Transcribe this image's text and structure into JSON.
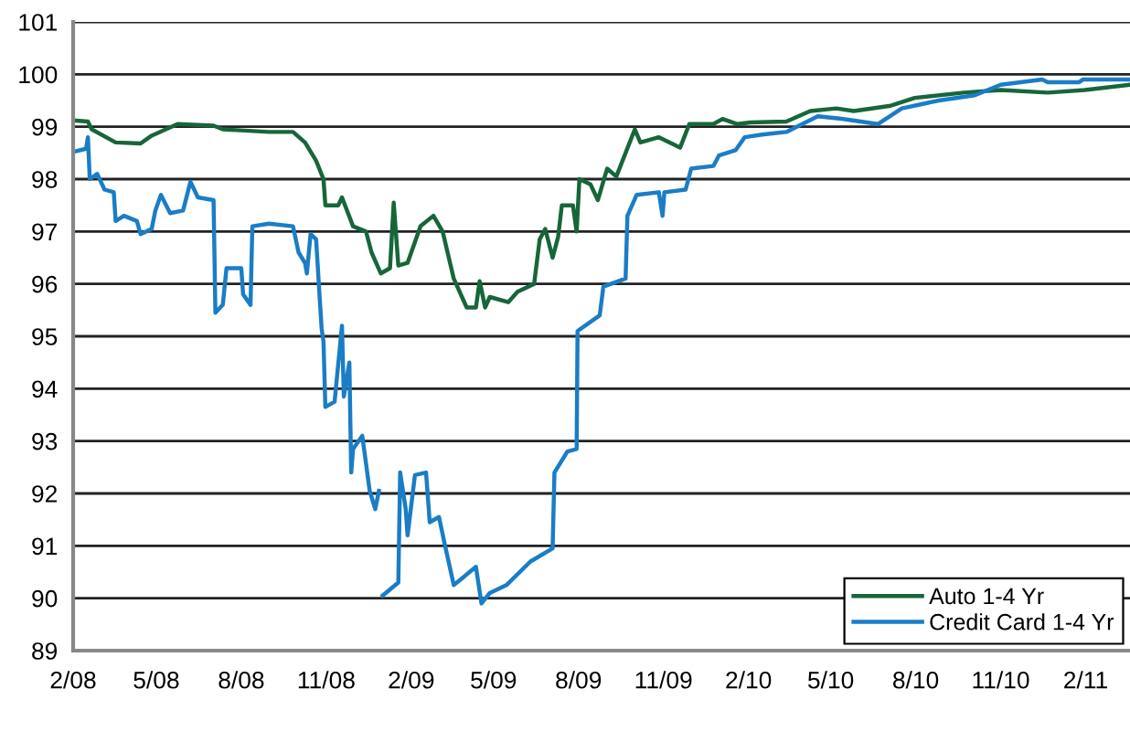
{
  "chart_data": {
    "type": "line",
    "series": [
      {
        "name": "Auto 1-4 Yr",
        "color": "#17663a",
        "x": [
          "2008-02-01",
          "2008-02-17",
          "2008-02-21",
          "2008-03-18",
          "2008-04-14",
          "2008-04-26",
          "2008-05-24",
          "2008-07-02",
          "2008-07-12",
          "2008-08-31",
          "2008-09-26",
          "2008-10-09",
          "2008-10-21",
          "2008-10-29",
          "2008-10-31",
          "2008-11-14",
          "2008-11-18",
          "2008-11-30",
          "2008-12-14",
          "2008-12-20",
          "2008-12-30",
          "2009-01-09",
          "2009-01-13",
          "2009-01-18",
          "2009-01-28",
          "2009-02-11",
          "2009-02-25",
          "2009-03-07",
          "2009-03-19",
          "2009-04-02",
          "2009-04-12",
          "2009-04-16",
          "2009-04-22",
          "2009-04-27",
          "2009-05-17",
          "2009-05-27",
          "2009-06-14",
          "2009-06-20",
          "2009-06-26",
          "2009-07-04",
          "2009-07-10",
          "2009-07-14",
          "2009-07-26",
          "2009-07-30",
          "2009-08-02",
          "2009-08-14",
          "2009-08-22",
          "2009-09-01",
          "2009-09-11",
          "2009-09-21",
          "2009-10-01",
          "2009-10-07",
          "2009-10-27",
          "2009-11-19",
          "2009-11-29",
          "2009-12-25",
          "2010-01-04",
          "2010-01-20",
          "2010-02-03",
          "2010-03-14",
          "2010-04-09",
          "2010-05-07",
          "2010-05-26",
          "2010-07-05",
          "2010-07-31",
          "2010-09-22",
          "2010-11-01",
          "2010-12-22",
          "2011-01-31",
          "2011-03-21"
        ],
        "values": [
          99.12,
          99.1,
          98.95,
          98.7,
          98.68,
          98.83,
          99.05,
          99.02,
          98.95,
          98.9,
          98.9,
          98.7,
          98.35,
          98.0,
          97.5,
          97.5,
          97.65,
          97.1,
          97.0,
          96.6,
          96.2,
          96.3,
          97.55,
          96.35,
          96.4,
          97.1,
          97.3,
          97.0,
          96.1,
          95.55,
          95.55,
          96.05,
          95.55,
          95.75,
          95.65,
          95.85,
          96.0,
          96.85,
          97.05,
          96.5,
          96.9,
          97.5,
          97.5,
          97.0,
          98.0,
          97.9,
          97.6,
          98.2,
          98.05,
          98.5,
          98.95,
          98.7,
          98.8,
          98.6,
          99.05,
          99.05,
          99.15,
          99.05,
          99.08,
          99.1,
          99.3,
          99.35,
          99.3,
          99.4,
          99.55,
          99.65,
          99.7,
          99.65,
          99.7,
          99.8
        ]
      },
      {
        "name": "Credit Card 1-4 Yr",
        "color": "#1a7dc6",
        "x": [
          "2008-02-01",
          "2008-02-15",
          "2008-02-17",
          "2008-02-19",
          "2008-02-27",
          "2008-03-06",
          "2008-03-16",
          "2008-03-18",
          "2008-03-27",
          "2008-04-10",
          "2008-04-14",
          "2008-04-26",
          "2008-04-30",
          "2008-05-06",
          "2008-05-16",
          "2008-05-30",
          "2008-06-07",
          "2008-06-15",
          "2008-07-02",
          "2008-07-04",
          "2008-07-12",
          "2008-07-16",
          "2008-08-01",
          "2008-08-03",
          "2008-08-11",
          "2008-08-13",
          "2008-08-31",
          "2008-09-26",
          "2008-10-02",
          "2008-10-09",
          "2008-10-11",
          "2008-10-15",
          "2008-10-21",
          "2008-10-25",
          "2008-10-27",
          "2008-10-29",
          "2008-10-31",
          "2008-11-10",
          "2008-11-18",
          "2008-11-20",
          "2008-11-26",
          "2008-11-28",
          "2008-11-30",
          "2008-12-10",
          "2008-12-18",
          "2008-12-24",
          "2008-12-28",
          "2008-12-30",
          "2009-01-01",
          "2009-01-18",
          "2009-01-20",
          "2009-01-26",
          "2009-01-28",
          "2009-02-05",
          "2009-02-17",
          "2009-02-21",
          "2009-03-03",
          "2009-03-09",
          "2009-03-19",
          "2009-04-12",
          "2009-04-18",
          "2009-04-27",
          "2009-05-15",
          "2009-06-10",
          "2009-07-04",
          "2009-07-06",
          "2009-07-20",
          "2009-07-30",
          "2009-07-31",
          "2009-08-24",
          "2009-08-28",
          "2009-09-21",
          "2009-09-23",
          "2009-10-03",
          "2009-10-27",
          "2009-10-31",
          "2009-11-02",
          "2009-11-25",
          "2009-12-01",
          "2009-12-25",
          "2009-12-31",
          "2010-01-18",
          "2010-01-28",
          "2010-02-16",
          "2010-03-14",
          "2010-04-17",
          "2010-05-13",
          "2010-06-21",
          "2010-07-17",
          "2010-08-26",
          "2010-10-04",
          "2010-11-01",
          "2010-12-16",
          "2010-12-22",
          "2011-01-25",
          "2011-01-29",
          "2011-03-21"
        ],
        "values": [
          98.52,
          98.58,
          98.8,
          98.0,
          98.1,
          97.8,
          97.75,
          97.2,
          97.3,
          97.2,
          96.95,
          97.05,
          97.4,
          97.7,
          97.35,
          97.4,
          97.95,
          97.65,
          97.6,
          95.45,
          95.6,
          96.3,
          96.3,
          95.8,
          95.6,
          97.1,
          97.15,
          97.1,
          96.6,
          96.4,
          96.2,
          96.95,
          96.85,
          95.7,
          95.14,
          94.9,
          93.65,
          93.75,
          95.2,
          93.85,
          94.5,
          92.4,
          92.85,
          93.1,
          92.05,
          91.7,
          92.05,
          null,
          90.05,
          90.3,
          92.4,
          91.7,
          91.2,
          92.35,
          92.4,
          91.45,
          91.55,
          91.05,
          90.25,
          90.6,
          89.9,
          90.1,
          90.25,
          90.7,
          90.95,
          92.4,
          92.8,
          92.85,
          95.1,
          95.4,
          95.95,
          96.1,
          97.3,
          97.7,
          97.75,
          97.3,
          97.75,
          97.8,
          98.2,
          98.25,
          98.45,
          98.55,
          98.8,
          98.85,
          98.9,
          99.2,
          99.15,
          99.05,
          99.35,
          99.5,
          99.6,
          99.8,
          99.9,
          99.85,
          99.85,
          99.9,
          99.9
        ]
      }
    ],
    "xlim": [
      "2008-02-01",
      "2011-03-21"
    ],
    "xticks": [
      {
        "value": "2008-02",
        "label": "2/08"
      },
      {
        "value": "2008-05",
        "label": "5/08"
      },
      {
        "value": "2008-08",
        "label": "8/08"
      },
      {
        "value": "2008-11",
        "label": "11/08"
      },
      {
        "value": "2009-02",
        "label": "2/09"
      },
      {
        "value": "2009-05",
        "label": "5/09"
      },
      {
        "value": "2009-08",
        "label": "8/09"
      },
      {
        "value": "2009-11",
        "label": "11/09"
      },
      {
        "value": "2010-02",
        "label": "2/10"
      },
      {
        "value": "2010-05",
        "label": "5/10"
      },
      {
        "value": "2010-08",
        "label": "8/10"
      },
      {
        "value": "2010-11",
        "label": "11/10"
      },
      {
        "value": "2011-02",
        "label": "2/11"
      }
    ],
    "ylim": [
      89,
      101
    ],
    "yticks": [
      89,
      90,
      91,
      92,
      93,
      94,
      95,
      96,
      97,
      98,
      99,
      100,
      101
    ],
    "grid": "y",
    "legend": "bottom right",
    "marker": "none",
    "line_style": "solid"
  }
}
